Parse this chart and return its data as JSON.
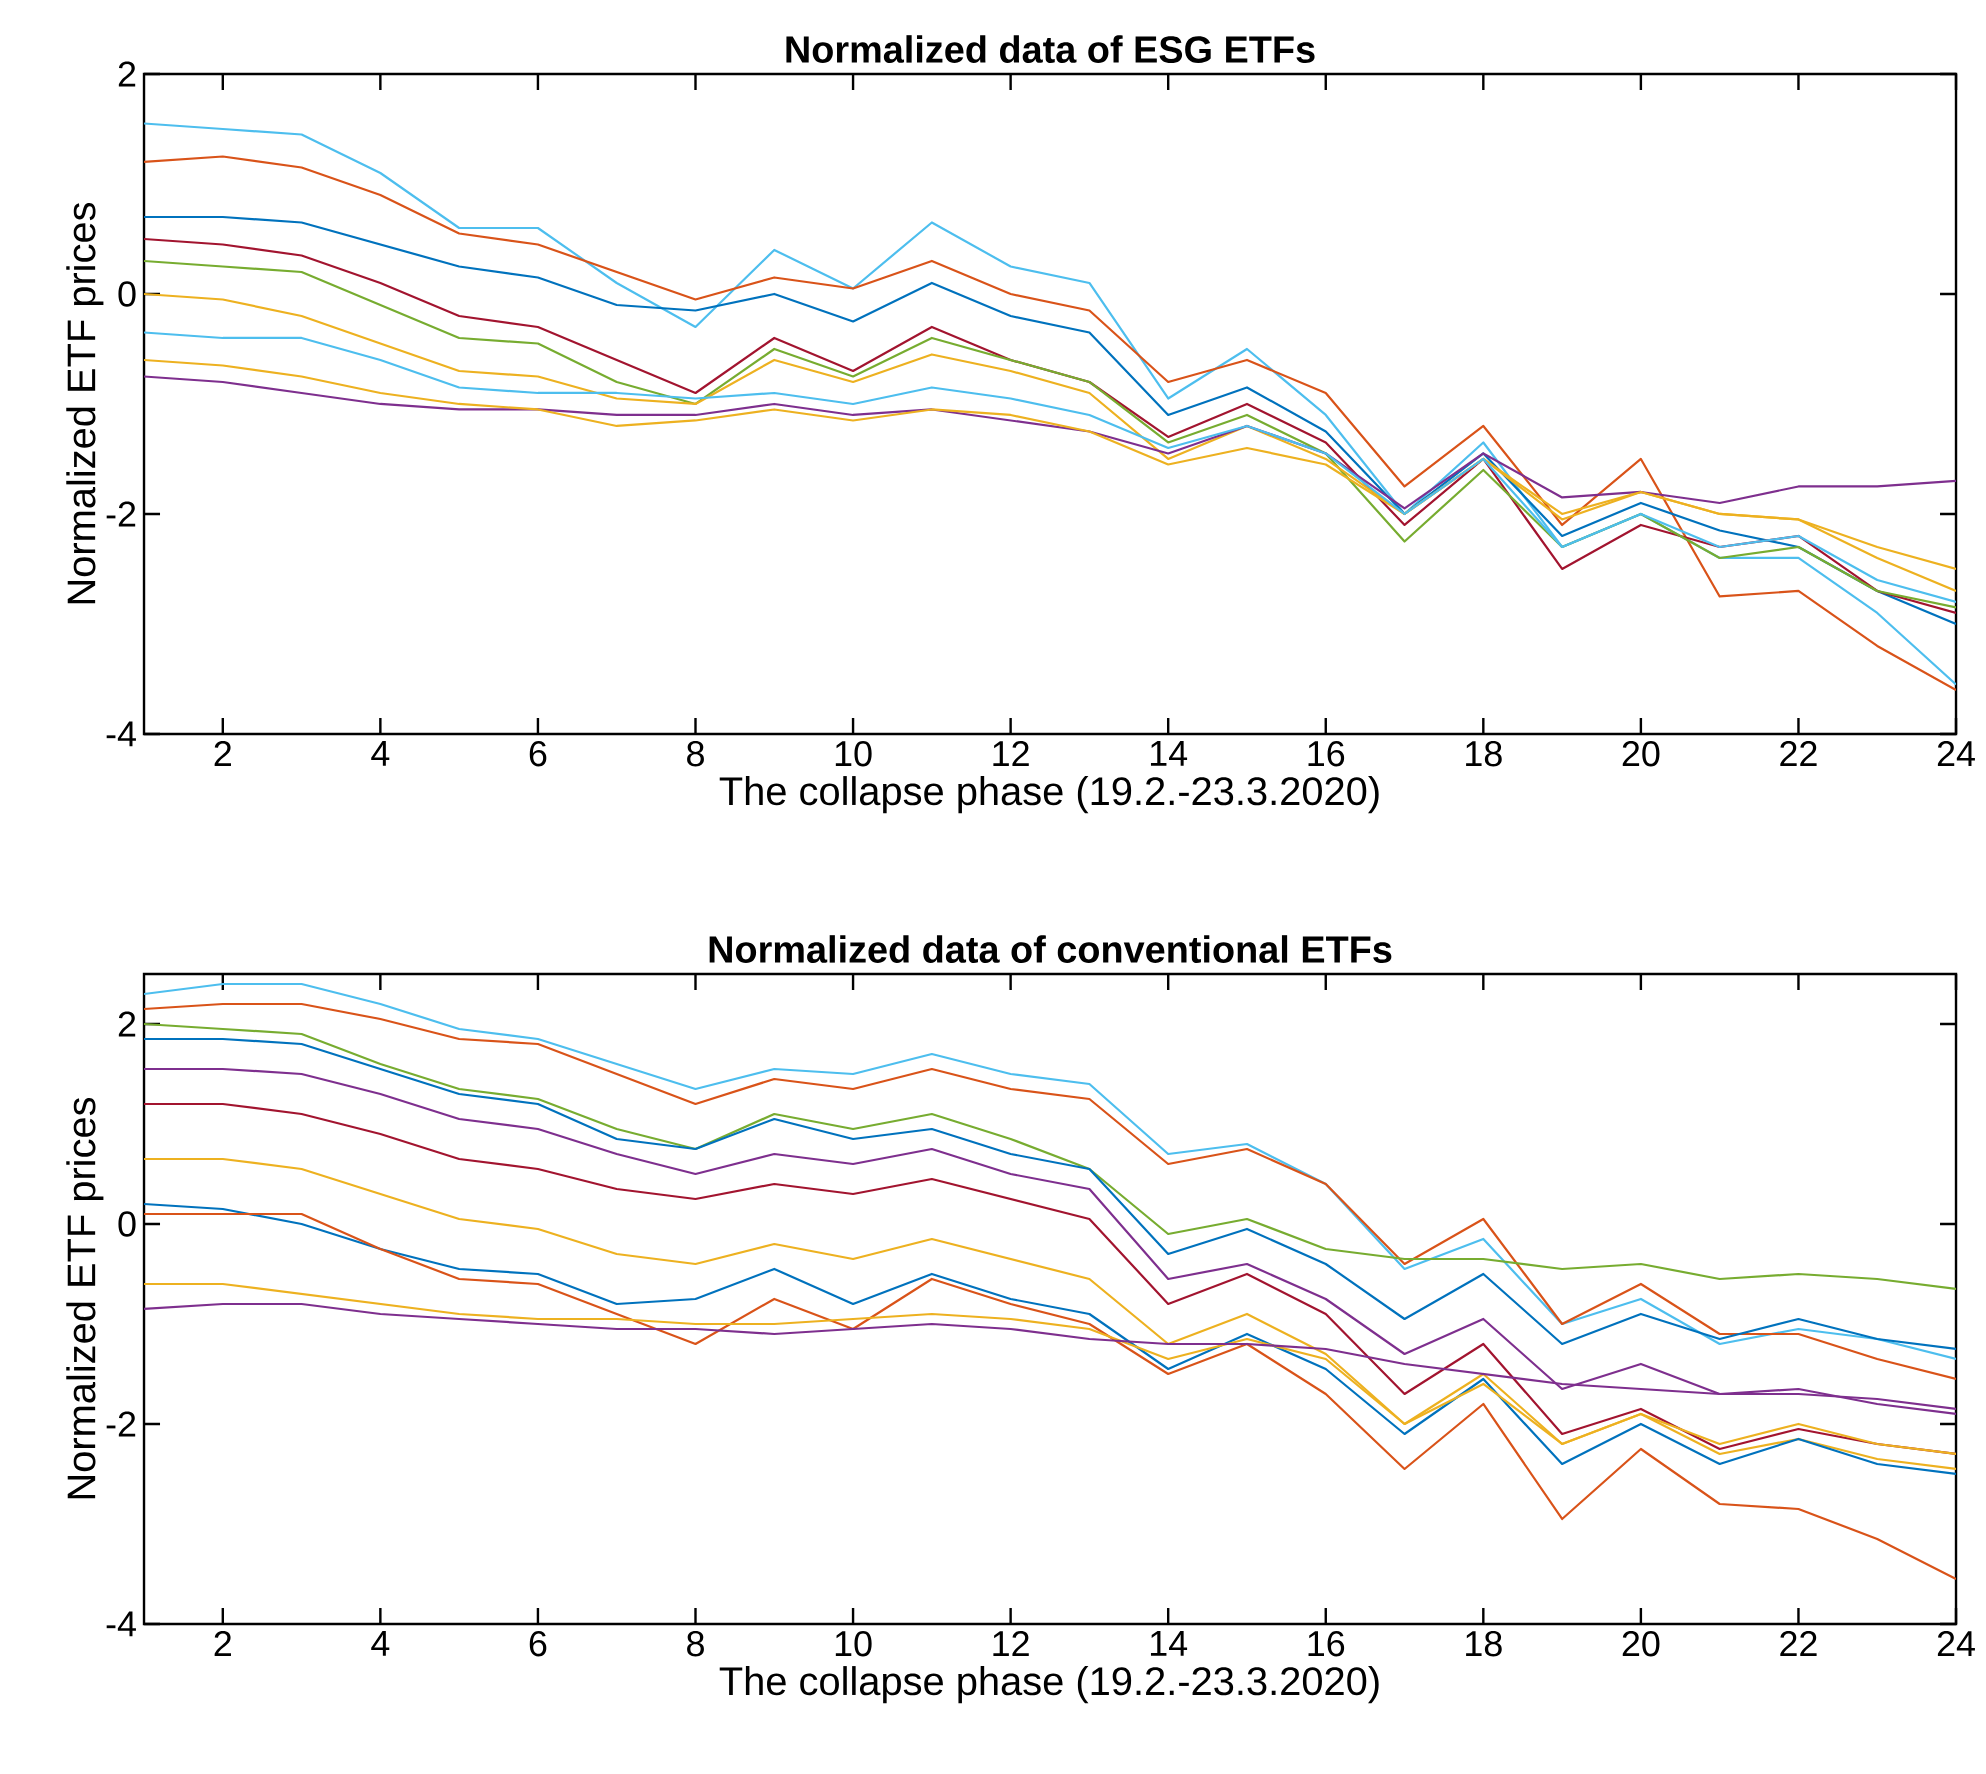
{
  "chart_data": [
    {
      "type": "line",
      "title": "Normalized data of ESG ETFs",
      "xlabel": "The collapse phase (19.2.-23.3.2020)",
      "ylabel": "Normalized ETF prices",
      "x": [
        1,
        2,
        3,
        4,
        5,
        6,
        7,
        8,
        9,
        10,
        11,
        12,
        13,
        14,
        15,
        16,
        17,
        18,
        19,
        20,
        21,
        22,
        23,
        24
      ],
      "xlim": [
        1,
        24
      ],
      "ylim": [
        -4,
        2
      ],
      "xticks": [
        2,
        4,
        6,
        8,
        10,
        12,
        14,
        16,
        18,
        20,
        22,
        24
      ],
      "yticks": [
        -4,
        -2,
        0,
        2
      ],
      "series": [
        {
          "color": "#4dbeee",
          "values": [
            1.55,
            1.5,
            1.45,
            1.1,
            0.6,
            0.6,
            0.1,
            -0.3,
            0.4,
            0.05,
            0.65,
            0.25,
            0.1,
            -0.95,
            -0.5,
            -1.1,
            -2.0,
            -1.35,
            -2.3,
            -2.0,
            -2.4,
            -2.4,
            -2.9,
            -3.55
          ]
        },
        {
          "color": "#d95319",
          "values": [
            1.2,
            1.25,
            1.15,
            0.9,
            0.55,
            0.45,
            0.2,
            -0.05,
            0.15,
            0.05,
            0.3,
            0.0,
            -0.15,
            -0.8,
            -0.6,
            -0.9,
            -1.75,
            -1.2,
            -2.1,
            -1.5,
            -2.75,
            -2.7,
            -3.2,
            -3.6
          ]
        },
        {
          "color": "#0072bd",
          "values": [
            0.7,
            0.7,
            0.65,
            0.45,
            0.25,
            0.15,
            -0.1,
            -0.15,
            0.0,
            -0.25,
            0.1,
            -0.2,
            -0.35,
            -1.1,
            -0.85,
            -1.25,
            -2.0,
            -1.45,
            -2.2,
            -1.9,
            -2.15,
            -2.3,
            -2.7,
            -3.0
          ]
        },
        {
          "color": "#a2142f",
          "values": [
            0.5,
            0.45,
            0.35,
            0.1,
            -0.2,
            -0.3,
            -0.6,
            -0.9,
            -0.4,
            -0.7,
            -0.3,
            -0.6,
            -0.8,
            -1.3,
            -1.0,
            -1.35,
            -2.1,
            -1.5,
            -2.5,
            -2.1,
            -2.3,
            -2.2,
            -2.7,
            -2.9
          ]
        },
        {
          "color": "#77ac30",
          "values": [
            0.3,
            0.25,
            0.2,
            -0.1,
            -0.4,
            -0.45,
            -0.8,
            -1.0,
            -0.5,
            -0.75,
            -0.4,
            -0.6,
            -0.8,
            -1.35,
            -1.1,
            -1.45,
            -2.25,
            -1.6,
            -2.3,
            -2.0,
            -2.4,
            -2.3,
            -2.7,
            -2.85
          ]
        },
        {
          "color": "#edb120",
          "values": [
            0.0,
            -0.05,
            -0.2,
            -0.45,
            -0.7,
            -0.75,
            -0.95,
            -1.0,
            -0.6,
            -0.8,
            -0.55,
            -0.7,
            -0.9,
            -1.5,
            -1.2,
            -1.5,
            -2.0,
            -1.5,
            -2.05,
            -1.8,
            -2.0,
            -2.05,
            -2.4,
            -2.7
          ]
        },
        {
          "color": "#7e2f8e",
          "values": [
            -0.75,
            -0.8,
            -0.9,
            -1.0,
            -1.05,
            -1.05,
            -1.1,
            -1.1,
            -1.0,
            -1.1,
            -1.05,
            -1.15,
            -1.25,
            -1.45,
            -1.2,
            -1.45,
            -1.95,
            -1.45,
            -1.85,
            -1.8,
            -1.9,
            -1.75,
            -1.75,
            -1.7
          ]
        },
        {
          "color": "#edb120",
          "values": [
            -0.6,
            -0.65,
            -0.75,
            -0.9,
            -1.0,
            -1.05,
            -1.2,
            -1.15,
            -1.05,
            -1.15,
            -1.05,
            -1.1,
            -1.25,
            -1.55,
            -1.4,
            -1.55,
            -2.0,
            -1.5,
            -2.0,
            -1.8,
            -2.0,
            -2.05,
            -2.3,
            -2.5
          ]
        },
        {
          "color": "#4dbeee",
          "values": [
            -0.35,
            -0.4,
            -0.4,
            -0.6,
            -0.85,
            -0.9,
            -0.9,
            -0.95,
            -0.9,
            -1.0,
            -0.85,
            -0.95,
            -1.1,
            -1.4,
            -1.2,
            -1.45,
            -2.0,
            -1.5,
            -2.3,
            -2.0,
            -2.3,
            -2.2,
            -2.6,
            -2.8
          ]
        }
      ]
    },
    {
      "type": "line",
      "title": "Normalized data of conventional ETFs",
      "xlabel": "The collapse phase (19.2.-23.3.2020)",
      "ylabel": "Normalized ETF prices",
      "x": [
        1,
        2,
        3,
        4,
        5,
        6,
        7,
        8,
        9,
        10,
        11,
        12,
        13,
        14,
        15,
        16,
        17,
        18,
        19,
        20,
        21,
        22,
        23,
        24
      ],
      "xlim": [
        1,
        24
      ],
      "ylim": [
        -4,
        2.5
      ],
      "xticks": [
        2,
        4,
        6,
        8,
        10,
        12,
        14,
        16,
        18,
        20,
        22,
        24
      ],
      "yticks": [
        -4,
        -2,
        0,
        2
      ],
      "series": [
        {
          "color": "#4dbeee",
          "values": [
            2.3,
            2.4,
            2.4,
            2.2,
            1.95,
            1.85,
            1.6,
            1.35,
            1.55,
            1.5,
            1.7,
            1.5,
            1.4,
            0.7,
            0.8,
            0.4,
            -0.45,
            -0.15,
            -1.0,
            -0.75,
            -1.2,
            -1.05,
            -1.15,
            -1.35
          ]
        },
        {
          "color": "#d95319",
          "values": [
            2.15,
            2.2,
            2.2,
            2.05,
            1.85,
            1.8,
            1.5,
            1.2,
            1.45,
            1.35,
            1.55,
            1.35,
            1.25,
            0.6,
            0.75,
            0.4,
            -0.4,
            0.05,
            -1.0,
            -0.6,
            -1.1,
            -1.1,
            -1.35,
            -1.55
          ]
        },
        {
          "color": "#77ac30",
          "values": [
            2.0,
            1.95,
            1.9,
            1.6,
            1.35,
            1.25,
            0.95,
            0.75,
            1.1,
            0.95,
            1.1,
            0.85,
            0.55,
            -0.1,
            0.05,
            -0.25,
            -0.35,
            -0.35,
            -0.45,
            -0.4,
            -0.55,
            -0.5,
            -0.55,
            -0.65
          ]
        },
        {
          "color": "#0072bd",
          "values": [
            1.85,
            1.85,
            1.8,
            1.55,
            1.3,
            1.2,
            0.85,
            0.75,
            1.05,
            0.85,
            0.95,
            0.7,
            0.55,
            -0.3,
            -0.05,
            -0.4,
            -0.95,
            -0.5,
            -1.2,
            -0.9,
            -1.15,
            -0.95,
            -1.15,
            -1.25
          ]
        },
        {
          "color": "#7e2f8e",
          "values": [
            1.55,
            1.55,
            1.5,
            1.3,
            1.05,
            0.95,
            0.7,
            0.5,
            0.7,
            0.6,
            0.75,
            0.5,
            0.35,
            -0.55,
            -0.4,
            -0.75,
            -1.3,
            -0.95,
            -1.65,
            -1.4,
            -1.7,
            -1.65,
            -1.8,
            -1.9
          ]
        },
        {
          "color": "#a2142f",
          "values": [
            1.2,
            1.2,
            1.1,
            0.9,
            0.65,
            0.55,
            0.35,
            0.25,
            0.4,
            0.3,
            0.45,
            0.25,
            0.05,
            -0.8,
            -0.5,
            -0.9,
            -1.7,
            -1.2,
            -2.1,
            -1.85,
            -2.25,
            -2.05,
            -2.2,
            -2.3
          ]
        },
        {
          "color": "#edb120",
          "values": [
            0.65,
            0.65,
            0.55,
            0.3,
            0.05,
            -0.05,
            -0.3,
            -0.4,
            -0.2,
            -0.35,
            -0.15,
            -0.35,
            -0.55,
            -1.2,
            -0.9,
            -1.3,
            -2.0,
            -1.5,
            -2.2,
            -1.9,
            -2.3,
            -2.15,
            -2.35,
            -2.45
          ]
        },
        {
          "color": "#0072bd",
          "values": [
            0.2,
            0.15,
            0.0,
            -0.25,
            -0.45,
            -0.5,
            -0.8,
            -0.75,
            -0.45,
            -0.8,
            -0.5,
            -0.75,
            -0.9,
            -1.45,
            -1.1,
            -1.45,
            -2.1,
            -1.55,
            -2.4,
            -2.0,
            -2.4,
            -2.15,
            -2.4,
            -2.5
          ]
        },
        {
          "color": "#d95319",
          "values": [
            0.1,
            0.1,
            0.1,
            -0.25,
            -0.55,
            -0.6,
            -0.9,
            -1.2,
            -0.75,
            -1.05,
            -0.55,
            -0.8,
            -1.0,
            -1.5,
            -1.2,
            -1.7,
            -2.45,
            -1.8,
            -2.95,
            -2.25,
            -2.8,
            -2.85,
            -3.15,
            -3.55
          ]
        },
        {
          "color": "#edb120",
          "values": [
            -0.6,
            -0.6,
            -0.7,
            -0.8,
            -0.9,
            -0.95,
            -0.95,
            -1.0,
            -1.0,
            -0.95,
            -0.9,
            -0.95,
            -1.05,
            -1.35,
            -1.15,
            -1.35,
            -2.0,
            -1.6,
            -2.2,
            -1.9,
            -2.2,
            -2.0,
            -2.2,
            -2.3
          ]
        },
        {
          "color": "#7e2f8e",
          "values": [
            -0.85,
            -0.8,
            -0.8,
            -0.9,
            -0.95,
            -1.0,
            -1.05,
            -1.05,
            -1.1,
            -1.05,
            -1.0,
            -1.05,
            -1.15,
            -1.2,
            -1.2,
            -1.25,
            -1.4,
            -1.5,
            -1.6,
            -1.65,
            -1.7,
            -1.7,
            -1.75,
            -1.85
          ]
        }
      ]
    }
  ]
}
